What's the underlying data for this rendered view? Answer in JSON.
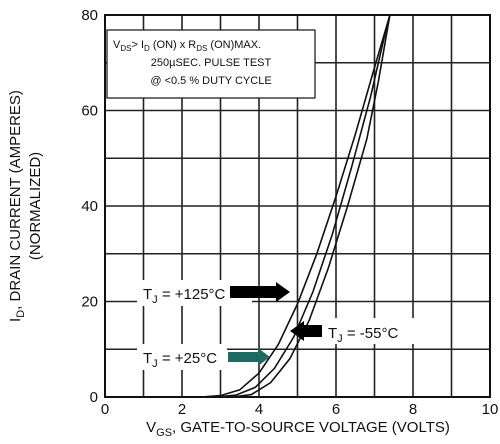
{
  "chart_data": {
    "type": "line",
    "x_range": [
      0,
      10
    ],
    "y_range": [
      0,
      80
    ],
    "x_ticks": [
      0,
      2,
      4,
      6,
      8,
      10
    ],
    "y_ticks": [
      0,
      20,
      40,
      60,
      80
    ],
    "grid": true,
    "xlabel": {
      "main_1": "V",
      "sub_1": "GS",
      "main_2": ", GATE-TO-SOURCE VOLTAGE (VOLTS)"
    },
    "ylabel": {
      "line1_main": "I",
      "line1_sub": "D",
      "line1_rest": ", DRAIN CURRENT (AMPERES)",
      "line2": "(NORMALIZED)"
    },
    "conditions": {
      "line1": {
        "v": "V",
        "v_sub": "DS",
        "gt": "> I",
        "i_sub": "D",
        "on": " (ON) x  R",
        "r_sub": "DS",
        "onmax": " (ON)MAX."
      },
      "line2": "250µSEC.  PULSE  TEST",
      "line3": "@ <0.5 %  DUTY  CYCLE"
    },
    "series": [
      {
        "label": {
          "main": "T",
          "sub": "J",
          "rest": " = +125°C"
        },
        "arrow_color": "#000000",
        "points": [
          [
            2.5,
            0
          ],
          [
            3.0,
            0.3
          ],
          [
            3.5,
            1.5
          ],
          [
            4.0,
            5
          ],
          [
            4.5,
            11
          ],
          [
            5.0,
            19.5
          ],
          [
            5.5,
            30
          ],
          [
            6.0,
            42
          ],
          [
            6.5,
            55
          ],
          [
            7.0,
            69
          ],
          [
            7.4,
            80
          ]
        ]
      },
      {
        "label": {
          "main": "T",
          "sub": "J",
          "rest": " = +25°C"
        },
        "arrow_color": "#1f6b63",
        "points": [
          [
            2.9,
            0
          ],
          [
            3.4,
            0.4
          ],
          [
            3.9,
            2
          ],
          [
            4.4,
            6
          ],
          [
            4.9,
            12.5
          ],
          [
            5.4,
            22
          ],
          [
            5.9,
            34
          ],
          [
            6.4,
            48
          ],
          [
            6.9,
            63
          ],
          [
            7.3,
            77
          ],
          [
            7.4,
            80
          ]
        ]
      },
      {
        "label": {
          "main": "T",
          "sub": "J",
          "rest": " = -55°C"
        },
        "arrow_color": "#000000",
        "points": [
          [
            3.3,
            0
          ],
          [
            3.8,
            0.5
          ],
          [
            4.3,
            3
          ],
          [
            4.8,
            8
          ],
          [
            5.3,
            16
          ],
          [
            5.8,
            27
          ],
          [
            6.3,
            40
          ],
          [
            6.8,
            54
          ],
          [
            7.1,
            66
          ],
          [
            7.4,
            80
          ]
        ]
      }
    ]
  }
}
